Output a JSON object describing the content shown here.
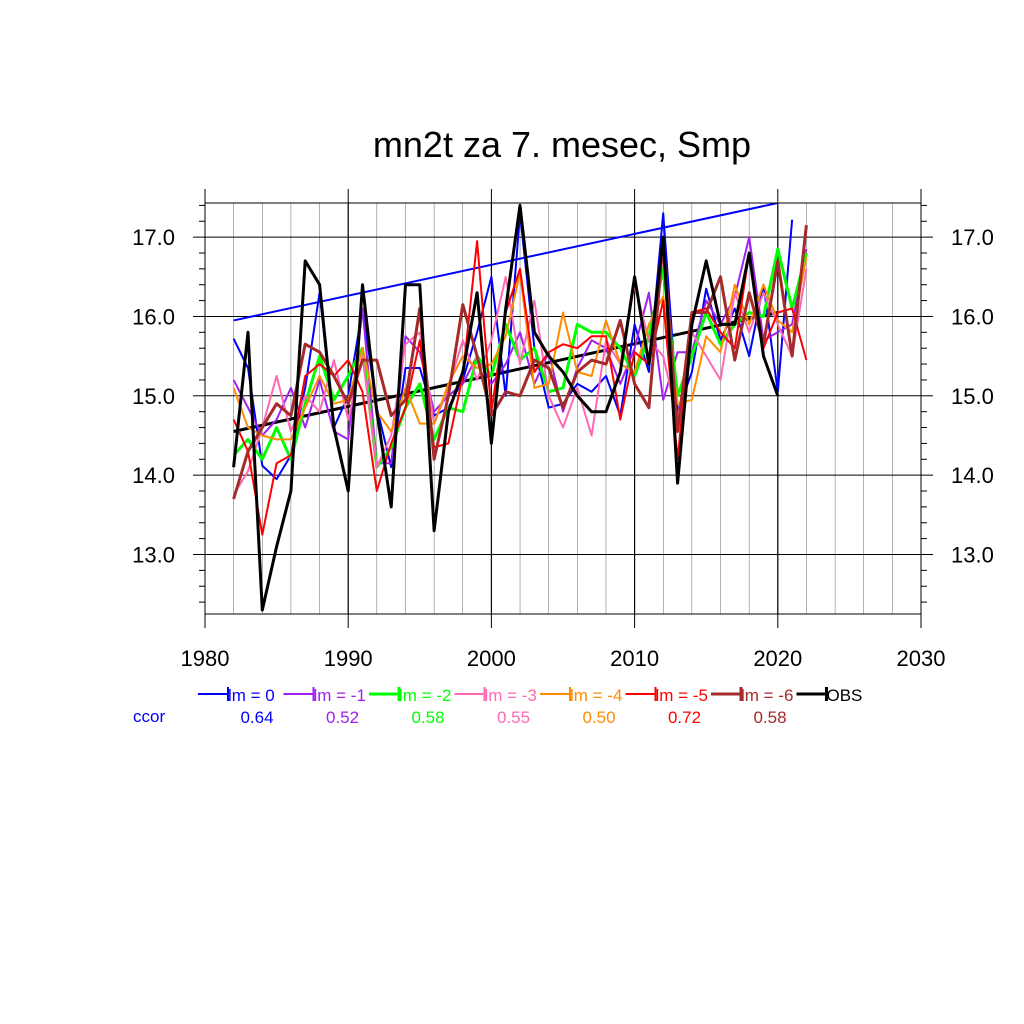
{
  "chart_data": {
    "type": "line",
    "title": "mn2t za 7. mesec, Smp",
    "xlabel": "",
    "ylabel": "",
    "xlim": [
      1980,
      2030
    ],
    "ylim": [
      12.25,
      17.43
    ],
    "x_ticks": [
      1980,
      1990,
      2000,
      2010,
      2020,
      2030
    ],
    "x_tick_labels": [
      "1980",
      "1990",
      "2000",
      "2010",
      "2020",
      "2030"
    ],
    "y_ticks": [
      13.0,
      14.0,
      15.0,
      16.0,
      17.0
    ],
    "y_tick_labels": [
      "13.0",
      "14.0",
      "15.0",
      "16.0",
      "17.0"
    ],
    "grid": true,
    "legend_position": "bottom",
    "ccor_label": "ccor",
    "series": [
      {
        "name": "lm = 0",
        "color": "#0000ff",
        "width": 2,
        "ccor": "0.64",
        "x": [
          1982,
          1983,
          1984,
          1985,
          1986,
          1987,
          1988,
          1989,
          1990,
          1991,
          1992,
          1993,
          1994,
          1995,
          1996,
          1997,
          1998,
          1999,
          2000,
          2001,
          2002,
          2003,
          2004,
          2005,
          2006,
          2007,
          2008,
          2009,
          2010,
          2011,
          2012,
          2013,
          2014,
          2015,
          2016,
          2017,
          2018,
          2019,
          2020,
          2021
        ],
        "y": [
          15.72,
          15.35,
          14.12,
          13.95,
          14.25,
          15.1,
          16.3,
          14.6,
          15.0,
          16.1,
          14.85,
          14.1,
          15.35,
          15.35,
          14.75,
          14.85,
          15.2,
          15.8,
          16.5,
          15.0,
          17.3,
          15.6,
          14.85,
          14.9,
          15.15,
          15.05,
          15.25,
          14.75,
          15.9,
          15.3,
          17.3,
          14.8,
          15.3,
          16.35,
          15.7,
          16.1,
          15.5,
          16.4,
          15.05,
          17.22
        ]
      },
      {
        "name": "lm = -1",
        "color": "#a020f0",
        "width": 2,
        "ccor": "0.52",
        "x": [
          1982,
          1983,
          1984,
          1985,
          1986,
          1987,
          1988,
          1989,
          1990,
          1991,
          1992,
          1993,
          1994,
          1995,
          1996,
          1997,
          1998,
          1999,
          2000,
          2001,
          2002,
          2003,
          2004,
          2005,
          2006,
          2007,
          2008,
          2009,
          2010,
          2011,
          2012,
          2013,
          2014,
          2015,
          2016,
          2017,
          2018,
          2019,
          2020,
          2021,
          2022
        ],
        "y": [
          15.2,
          14.85,
          14.5,
          14.7,
          15.1,
          14.6,
          15.2,
          14.55,
          14.45,
          16.1,
          14.15,
          14.15,
          15.75,
          15.55,
          14.8,
          15.0,
          15.15,
          15.5,
          15.15,
          15.4,
          15.8,
          15.15,
          15.55,
          14.8,
          15.35,
          15.7,
          15.6,
          15.15,
          15.6,
          16.3,
          14.95,
          15.55,
          15.55,
          16.2,
          15.9,
          16.25,
          17.0,
          15.7,
          15.8,
          15.9,
          16.85
        ]
      },
      {
        "name": "lm = -2",
        "color": "#00ff00",
        "width": 3,
        "ccor": "0.58",
        "x": [
          1982,
          1983,
          1984,
          1985,
          1986,
          1987,
          1988,
          1989,
          1990,
          1991,
          1992,
          1993,
          1994,
          1995,
          1996,
          1997,
          1998,
          1999,
          2000,
          2001,
          2002,
          2003,
          2004,
          2005,
          2006,
          2007,
          2008,
          2009,
          2010,
          2011,
          2012,
          2013,
          2014,
          2015,
          2016,
          2017,
          2018,
          2019,
          2020,
          2021,
          2022
        ],
        "y": [
          14.25,
          14.45,
          14.2,
          14.6,
          14.2,
          14.9,
          15.5,
          14.95,
          15.25,
          15.6,
          14.1,
          14.35,
          14.85,
          15.15,
          14.45,
          14.85,
          14.8,
          15.5,
          15.25,
          15.9,
          15.45,
          15.6,
          15.05,
          15.1,
          15.9,
          15.8,
          15.8,
          15.6,
          15.25,
          15.75,
          16.6,
          15.0,
          15.5,
          16.05,
          15.65,
          15.9,
          16.05,
          16.0,
          16.85,
          16.1,
          16.8
        ]
      },
      {
        "name": "lm = -3",
        "color": "#ff69b4",
        "width": 2,
        "ccor": "0.55",
        "x": [
          1982,
          1983,
          1984,
          1985,
          1986,
          1987,
          1988,
          1989,
          1990,
          1991,
          1992,
          1993,
          1994,
          1995,
          1996,
          1997,
          1998,
          1999,
          2000,
          2001,
          2002,
          2003,
          2004,
          2005,
          2006,
          2007,
          2008,
          2009,
          2010,
          2011,
          2012,
          2013,
          2014,
          2015,
          2016,
          2017,
          2018,
          2019,
          2020,
          2021,
          2022
        ],
        "y": [
          13.75,
          14.05,
          14.6,
          15.25,
          14.55,
          15.0,
          14.8,
          15.45,
          14.7,
          15.5,
          14.1,
          14.5,
          15.65,
          15.8,
          14.65,
          15.1,
          15.7,
          15.2,
          15.7,
          16.5,
          15.4,
          16.2,
          15.0,
          14.6,
          15.1,
          14.5,
          15.7,
          15.4,
          16.4,
          15.7,
          15.5,
          14.7,
          15.8,
          15.5,
          15.2,
          16.3,
          15.8,
          16.3,
          15.9,
          15.5,
          16.6
        ]
      },
      {
        "name": "lm = -4",
        "color": "#ff8c00",
        "width": 2,
        "ccor": "0.50",
        "x": [
          1982,
          1983,
          1984,
          1985,
          1986,
          1987,
          1988,
          1989,
          1990,
          1991,
          1992,
          1993,
          1994,
          1995,
          1996,
          1997,
          1998,
          1999,
          2000,
          2001,
          2002,
          2003,
          2004,
          2005,
          2006,
          2007,
          2008,
          2009,
          2010,
          2011,
          2012,
          2013,
          2014,
          2015,
          2016,
          2017,
          2018,
          2019,
          2020,
          2021,
          2022
        ],
        "y": [
          15.1,
          14.6,
          14.5,
          14.45,
          14.45,
          14.85,
          15.25,
          14.9,
          14.95,
          15.6,
          14.8,
          14.55,
          15.1,
          14.65,
          14.65,
          15.15,
          15.5,
          15.35,
          15.4,
          15.75,
          16.55,
          15.1,
          15.15,
          16.05,
          15.3,
          15.25,
          15.95,
          15.4,
          15.3,
          15.9,
          16.25,
          14.9,
          14.95,
          15.75,
          15.55,
          16.4,
          15.9,
          16.4,
          15.95,
          15.8,
          16.75
        ]
      },
      {
        "name": "lm = -5",
        "color": "#ff0000",
        "width": 2,
        "ccor": "0.72",
        "x": [
          1982,
          1983,
          1984,
          1985,
          1986,
          1987,
          1988,
          1989,
          1990,
          1991,
          1992,
          1993,
          1994,
          1995,
          1996,
          1997,
          1998,
          1999,
          2000,
          2001,
          2002,
          2003,
          2004,
          2005,
          2006,
          2007,
          2008,
          2009,
          2010,
          2011,
          2012,
          2013,
          2014,
          2015,
          2016,
          2017,
          2018,
          2019,
          2020,
          2021,
          2022
        ],
        "y": [
          14.7,
          14.3,
          13.25,
          14.15,
          14.25,
          15.25,
          15.4,
          15.25,
          15.45,
          15.05,
          13.8,
          14.4,
          14.85,
          15.7,
          14.35,
          14.4,
          15.25,
          16.95,
          14.8,
          16.05,
          16.6,
          15.3,
          15.55,
          15.65,
          15.6,
          15.75,
          15.75,
          14.7,
          15.55,
          15.4,
          16.2,
          14.2,
          16.05,
          16.1,
          15.8,
          15.6,
          16.8,
          15.6,
          16.05,
          16.1,
          15.45
        ]
      },
      {
        "name": "lm = -6",
        "color": "#a52a2a",
        "width": 3,
        "ccor": "0.58",
        "x": [
          1982,
          1983,
          1984,
          1985,
          1986,
          1987,
          1988,
          1989,
          1990,
          1991,
          1992,
          1993,
          1994,
          1995,
          1996,
          1997,
          1998,
          1999,
          2000,
          2001,
          2002,
          2003,
          2004,
          2005,
          2006,
          2007,
          2008,
          2009,
          2010,
          2011,
          2012,
          2013,
          2014,
          2015,
          2016,
          2017,
          2018,
          2019,
          2020,
          2021,
          2022
        ],
        "y": [
          13.7,
          14.3,
          14.6,
          14.9,
          14.75,
          15.65,
          15.55,
          15.25,
          14.9,
          15.45,
          15.45,
          14.75,
          14.95,
          16.1,
          14.2,
          15.0,
          16.15,
          15.5,
          14.75,
          15.05,
          15.0,
          15.45,
          15.35,
          14.85,
          15.3,
          15.45,
          15.4,
          15.95,
          15.15,
          14.85,
          16.95,
          14.55,
          16.05,
          16.05,
          16.5,
          15.45,
          16.3,
          15.65,
          16.7,
          15.5,
          17.15
        ]
      },
      {
        "name": "OBS",
        "color": "#000000",
        "width": 3,
        "ccor": "",
        "x": [
          1982,
          1983,
          1984,
          1985,
          1986,
          1987,
          1988,
          1989,
          1990,
          1991,
          1992,
          1993,
          1994,
          1995,
          1996,
          1997,
          1998,
          1999,
          2000,
          2001,
          2002,
          2003,
          2004,
          2005,
          2006,
          2007,
          2008,
          2009,
          2010,
          2011,
          2012,
          2013,
          2014,
          2015,
          2016,
          2017,
          2018,
          2019,
          2020
        ],
        "y": [
          14.1,
          15.8,
          12.3,
          13.1,
          13.8,
          16.7,
          16.4,
          14.6,
          13.8,
          16.4,
          14.8,
          13.6,
          16.4,
          16.4,
          13.3,
          14.8,
          15.3,
          16.3,
          14.4,
          16.1,
          17.4,
          15.8,
          15.5,
          15.3,
          15.0,
          14.8,
          14.8,
          15.3,
          16.5,
          15.4,
          17.0,
          13.9,
          15.9,
          16.7,
          15.9,
          15.9,
          16.8,
          15.5,
          15.0
        ]
      }
    ],
    "trend_lines": [
      {
        "color": "#0000ff",
        "width": 2,
        "x": [
          1982,
          2020
        ],
        "y": [
          15.95,
          17.43
        ]
      },
      {
        "color": "#000000",
        "width": 3,
        "x": [
          1982,
          2020
        ],
        "y": [
          14.55,
          16.05
        ]
      }
    ]
  }
}
